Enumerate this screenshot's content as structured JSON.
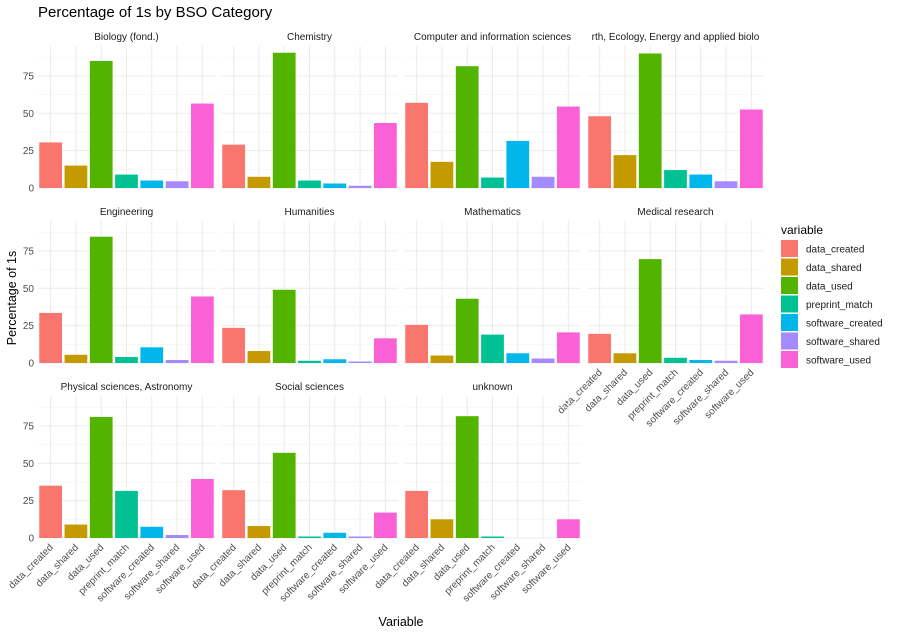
{
  "chart_data": {
    "type": "bar",
    "title": "Percentage of 1s by BSO Category",
    "xlabel": "Variable",
    "ylabel": "Percentage of 1s",
    "ylim": [
      0,
      95
    ],
    "y_ticks": [
      0,
      25,
      50,
      75
    ],
    "grid": true,
    "legend_title": "variable",
    "legend_position": "right",
    "categories": [
      "data_created",
      "data_shared",
      "data_used",
      "preprint_match",
      "software_created",
      "software_shared",
      "software_used"
    ],
    "colors": {
      "data_created": "#F8766D",
      "data_shared": "#C49A00",
      "data_used": "#53B400",
      "preprint_match": "#00C094",
      "software_created": "#00B6EB",
      "software_shared": "#A58AFF",
      "software_used": "#FB61D7"
    },
    "facets": [
      {
        "label": "Biology (fond.)",
        "values": [
          30.5,
          15,
          85,
          9,
          5,
          4.5,
          56.5
        ]
      },
      {
        "label": "Chemistry",
        "values": [
          29,
          7.5,
          90.5,
          5,
          3,
          1.5,
          43.5
        ]
      },
      {
        "label": "Computer and  information sciences",
        "values": [
          57,
          17.5,
          81.5,
          7,
          31.5,
          7.5,
          54.5
        ]
      },
      {
        "label": "rth, Ecology, Energy and applied biolo",
        "values": [
          48,
          22,
          90,
          12,
          9,
          4.5,
          52.5
        ]
      },
      {
        "label": "Engineering",
        "values": [
          33.5,
          5.5,
          84.5,
          4,
          10.5,
          2,
          44.5
        ]
      },
      {
        "label": "Humanities",
        "values": [
          23.5,
          8,
          49,
          1.5,
          2.5,
          1,
          16.5
        ]
      },
      {
        "label": "Mathematics",
        "values": [
          25.5,
          5,
          43,
          19,
          6.5,
          3,
          20.5
        ]
      },
      {
        "label": "Medical research",
        "values": [
          19.5,
          6.5,
          69.5,
          3.5,
          2,
          1.5,
          32.5
        ]
      },
      {
        "label": "Physical sciences, Astronomy",
        "values": [
          35,
          9,
          81,
          31.5,
          7.5,
          2,
          39.5
        ]
      },
      {
        "label": "Social sciences",
        "values": [
          32,
          8,
          57,
          1,
          3.5,
          1,
          17
        ]
      },
      {
        "label": "unknown",
        "values": [
          31.5,
          12.5,
          81.5,
          1,
          0,
          0,
          12.5
        ]
      }
    ]
  }
}
